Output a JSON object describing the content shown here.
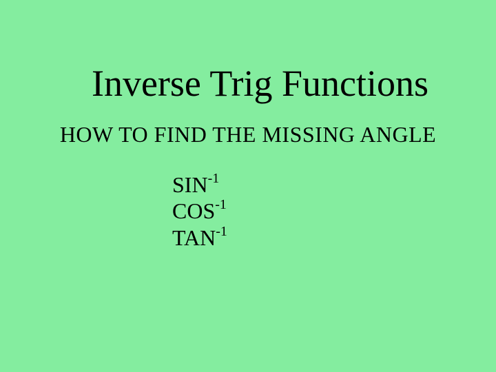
{
  "background_color": "#84ed9f",
  "text_color": "#000000",
  "title": "Inverse Trig Functions",
  "title_fontsize": 54,
  "subtitle": "HOW TO FIND THE MISSING ANGLE",
  "subtitle_fontsize": 32,
  "functions": [
    {
      "name": "SIN",
      "exponent": "-1"
    },
    {
      "name": "COS",
      "exponent": "-1"
    },
    {
      "name": "TAN",
      "exponent": "-1"
    }
  ],
  "function_fontsize": 32,
  "exponent_fontsize": 20,
  "font_family": "Comic Sans MS"
}
